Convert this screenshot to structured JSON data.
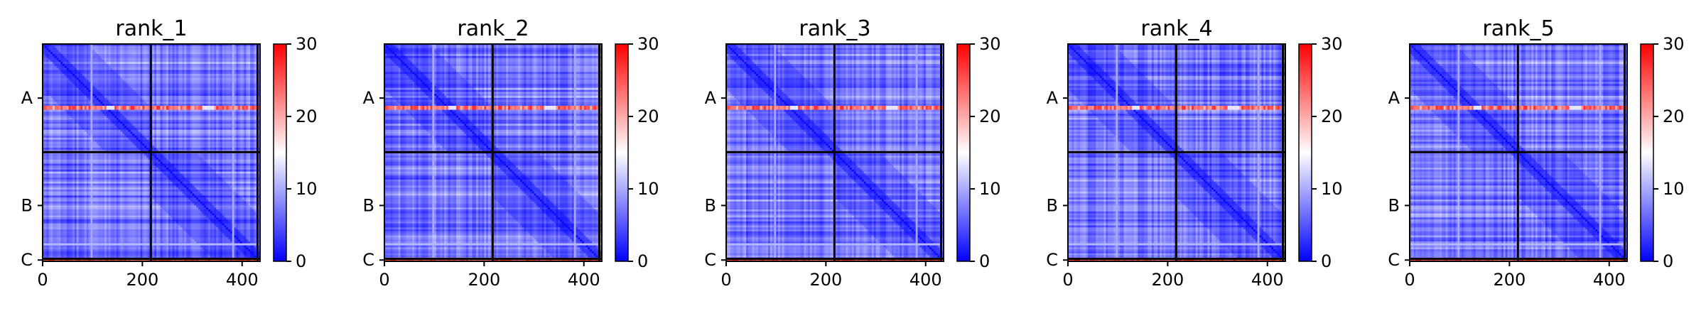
{
  "chart_data": {
    "type": "heatmap",
    "colormap": {
      "name": "bwr",
      "low": "#0000ff",
      "mid": "#ffffff",
      "high": "#ff0000"
    },
    "clim": [
      0,
      30
    ],
    "colorbar_ticks": [
      "0",
      "10",
      "20",
      "30"
    ],
    "x_ticks": [
      0,
      200,
      400
    ],
    "x_tick_labels": [
      "0",
      "200",
      "400"
    ],
    "xlim": [
      0,
      436
    ],
    "ylim": [
      436,
      0
    ],
    "chain_boundaries": [
      217,
      431
    ],
    "chains": [
      {
        "label": "A",
        "start": 0,
        "end": 217
      },
      {
        "label": "B",
        "start": 217,
        "end": 431
      },
      {
        "label": "C",
        "start": 431,
        "end": 436
      }
    ],
    "grid": false,
    "panels": [
      {
        "title": "rank_1"
      },
      {
        "title": "rank_2"
      },
      {
        "title": "rank_3"
      },
      {
        "title": "rank_4"
      },
      {
        "title": "rank_5"
      }
    ]
  }
}
